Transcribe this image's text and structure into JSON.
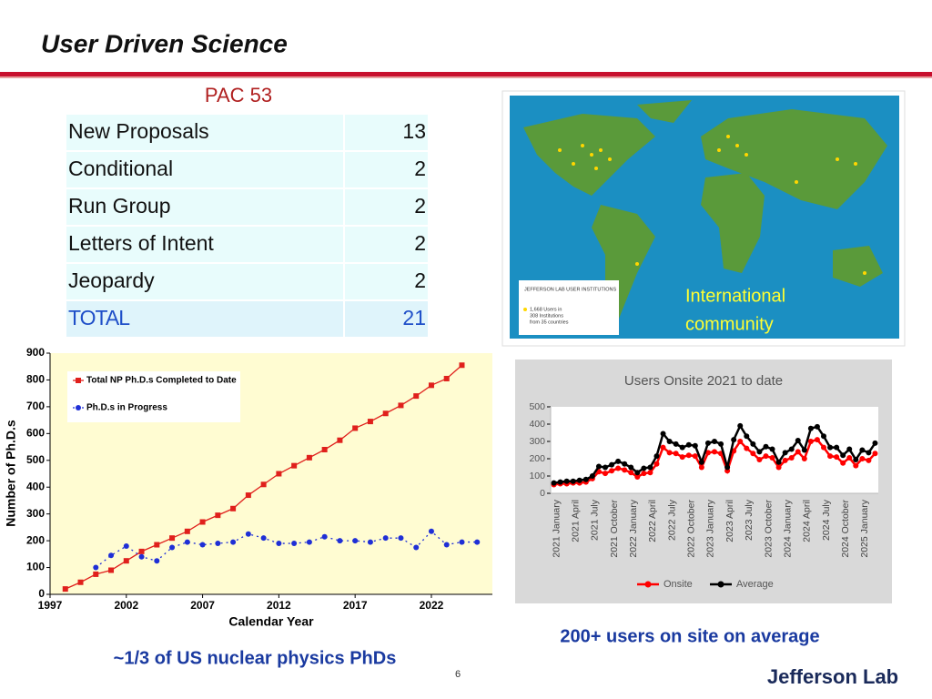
{
  "header": {
    "title": "User Driven Science"
  },
  "table": {
    "title": "PAC 53",
    "rows": [
      [
        "New Proposals",
        13
      ],
      [
        "Conditional",
        2
      ],
      [
        "Run Group",
        2
      ],
      [
        "Letters of Intent",
        2
      ],
      [
        "Jeopardy",
        2
      ],
      [
        "TOTAL",
        21
      ]
    ]
  },
  "map": {
    "legend_title": "JEFFERSON LAB USER INSTITUTIONS",
    "legend_text": [
      "1,668 Users in",
      "308 Institutions",
      "from 35 countries"
    ],
    "caption": [
      "International",
      "community"
    ]
  },
  "chart_data": [
    {
      "type": "line",
      "xlabel": "Calendar Year",
      "ylabel": "Number of Ph.D.s",
      "xlim": [
        1997,
        2026
      ],
      "xticks": [
        1997,
        2002,
        2007,
        2012,
        2017,
        2022
      ],
      "ylim": [
        0,
        900
      ],
      "yticks": [
        0,
        100,
        200,
        300,
        400,
        500,
        600,
        700,
        800,
        900
      ],
      "legend": "upper left",
      "series": [
        {
          "name": "Total NP Ph.D.s Completed to Date",
          "color": "#e0201c",
          "marker": "square",
          "x": [
            1998,
            1999,
            2000,
            2001,
            2002,
            2003,
            2004,
            2005,
            2006,
            2007,
            2008,
            2009,
            2010,
            2011,
            2012,
            2013,
            2014,
            2015,
            2016,
            2017,
            2018,
            2019,
            2020,
            2021,
            2022,
            2023,
            2024
          ],
          "values": [
            20,
            45,
            75,
            90,
            125,
            160,
            185,
            210,
            235,
            270,
            295,
            320,
            370,
            410,
            450,
            480,
            510,
            540,
            575,
            620,
            645,
            675,
            705,
            740,
            780,
            805,
            855
          ]
        },
        {
          "name": "Ph.D.s in Progress",
          "color": "#1f2fd6",
          "marker": "circle",
          "x": [
            2000,
            2001,
            2002,
            2003,
            2004,
            2005,
            2006,
            2007,
            2008,
            2009,
            2010,
            2011,
            2012,
            2013,
            2014,
            2015,
            2016,
            2017,
            2018,
            2019,
            2020,
            2021,
            2022,
            2023,
            2024,
            2025
          ],
          "values": [
            100,
            145,
            180,
            140,
            125,
            175,
            195,
            185,
            190,
            195,
            225,
            210,
            190,
            190,
            195,
            215,
            200,
            200,
            195,
            210,
            210,
            175,
            235,
            185,
            195,
            195
          ]
        }
      ]
    },
    {
      "type": "line",
      "title": "Users Onsite 2021 to date",
      "ylim": [
        0,
        500
      ],
      "yticks": [
        0,
        100,
        200,
        300,
        400,
        500
      ],
      "legend": "bottom",
      "categories": [
        "2021 January",
        null,
        null,
        "2021 April",
        null,
        null,
        "2021 July",
        null,
        null,
        "2021 October",
        null,
        null,
        "2022 January",
        null,
        null,
        "2022 April",
        null,
        null,
        "2022 July",
        null,
        null,
        "2022 October",
        null,
        null,
        "2023 January",
        null,
        null,
        "2023 April",
        null,
        null,
        "2023 July",
        null,
        null,
        "2023 October",
        null,
        null,
        "2024 January",
        null,
        null,
        "2024 April",
        null,
        null,
        "2024 July",
        null,
        null,
        "2024 October",
        null,
        null,
        "2025 January",
        null,
        null
      ],
      "series": [
        {
          "name": "Onsite",
          "color": "#ff0000",
          "values": [
            50,
            55,
            55,
            60,
            60,
            65,
            85,
            125,
            115,
            130,
            145,
            135,
            120,
            95,
            115,
            120,
            170,
            265,
            235,
            230,
            210,
            220,
            215,
            150,
            235,
            240,
            230,
            130,
            245,
            300,
            260,
            230,
            195,
            215,
            205,
            150,
            190,
            205,
            240,
            200,
            300,
            310,
            265,
            215,
            210,
            175,
            205,
            160,
            200,
            190,
            230
          ]
        },
        {
          "name": "Average",
          "color": "#000000",
          "values": [
            60,
            65,
            70,
            70,
            75,
            80,
            100,
            155,
            150,
            165,
            185,
            170,
            150,
            120,
            145,
            150,
            215,
            345,
            300,
            285,
            265,
            280,
            275,
            180,
            290,
            300,
            285,
            150,
            310,
            390,
            330,
            285,
            240,
            270,
            255,
            180,
            235,
            255,
            305,
            250,
            375,
            385,
            330,
            265,
            265,
            220,
            255,
            195,
            250,
            235,
            290
          ]
        }
      ]
    }
  ],
  "captions": [
    "~1/3 of US nuclear physics PhDs",
    "200+ users on site on average"
  ],
  "page_number": 6,
  "logo": "Jefferson Lab"
}
